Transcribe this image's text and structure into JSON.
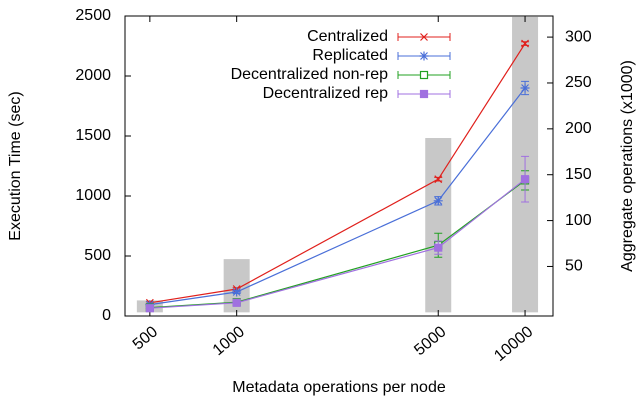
{
  "chart_data": {
    "type": "line",
    "x_label": "Metadata operations per node",
    "y_label": "Execution Time (sec)",
    "y2_label": "Aggregate operations (x1000)",
    "x": [
      500,
      1000,
      5000,
      10000
    ],
    "xlog": true,
    "xlim": [
      410,
      12500
    ],
    "xticks": [
      500,
      1000,
      5000,
      10000
    ],
    "ylim": [
      0,
      2500
    ],
    "yticks": [
      0,
      500,
      1000,
      1500,
      2000,
      2500
    ],
    "y2lim": [
      -4,
      323
    ],
    "y2ticks": [
      50,
      100,
      150,
      200,
      250,
      300
    ],
    "legend": "upper-right",
    "bars": {
      "axis": "y2",
      "color": "#c8c8c8",
      "values": [
        13,
        58,
        190,
        322
      ]
    },
    "series": [
      {
        "name": "Centralized",
        "color": "#e0201c",
        "marker": "x",
        "values": [
          110,
          225,
          1140,
          2270
        ],
        "errors": [
          8,
          10,
          15,
          15
        ]
      },
      {
        "name": "Replicated",
        "color": "#4a6fd8",
        "marker": "star",
        "values": [
          95,
          200,
          960,
          1900
        ],
        "errors": [
          8,
          12,
          35,
          55
        ]
      },
      {
        "name": "Decentralized non-rep",
        "color": "#22a022",
        "marker": "square-open",
        "values": [
          70,
          115,
          590,
          1130
        ],
        "errors": [
          8,
          10,
          100,
          80
        ]
      },
      {
        "name": "Decentralized rep",
        "color": "#a070e0",
        "marker": "square-filled",
        "values": [
          65,
          110,
          570,
          1140
        ],
        "errors": [
          8,
          10,
          55,
          190
        ]
      }
    ]
  }
}
